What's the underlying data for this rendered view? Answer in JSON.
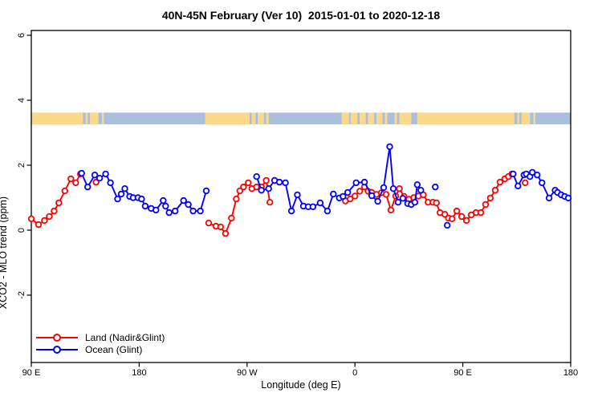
{
  "chart_data": {
    "type": "line",
    "title": "40N-45N February (Ver 10)  2015-01-01 to 2020-12-18",
    "xlabel": "Longitude (deg E)",
    "ylabel": "XCO2 - MLO trend (ppm)",
    "xlim": [
      90,
      540
    ],
    "ylim": [
      -4.07,
      6.15
    ],
    "grid": false,
    "x_ticks": [
      {
        "value": 90,
        "label": "90 E"
      },
      {
        "value": 180,
        "label": "180"
      },
      {
        "value": 270,
        "label": "90 W"
      },
      {
        "value": 360,
        "label": "0"
      },
      {
        "value": 450,
        "label": "90 E"
      },
      {
        "value": 540,
        "label": "180"
      }
    ],
    "y_ticks": [
      {
        "value": -2,
        "label": "-2"
      },
      {
        "value": 0,
        "label": "0"
      },
      {
        "value": 2,
        "label": "2"
      },
      {
        "value": 4,
        "label": "4"
      },
      {
        "value": 6,
        "label": "6"
      }
    ],
    "colors": {
      "land_series": "#ff0000",
      "ocean_series": "#0000ff",
      "map_land": "#fbd98b",
      "map_ocean": "#a9bfdb",
      "axis": "#000000",
      "background": "#ffffff"
    },
    "map_band": {
      "description": "land/ocean strip along longitude",
      "y_range": [
        3.26,
        3.62
      ],
      "segments": [
        {
          "from": 90,
          "to": 133,
          "type": "land"
        },
        {
          "from": 133,
          "to": 135.5,
          "type": "ocean"
        },
        {
          "from": 135.5,
          "to": 137,
          "type": "land"
        },
        {
          "from": 137,
          "to": 139,
          "type": "ocean"
        },
        {
          "from": 139,
          "to": 146,
          "type": "land"
        },
        {
          "from": 146,
          "to": 149,
          "type": "ocean"
        },
        {
          "from": 149,
          "to": 150.5,
          "type": "land"
        },
        {
          "from": 150.5,
          "to": 235,
          "type": "ocean"
        },
        {
          "from": 235,
          "to": 272,
          "type": "land"
        },
        {
          "from": 272,
          "to": 274,
          "type": "ocean"
        },
        {
          "from": 274,
          "to": 277,
          "type": "land"
        },
        {
          "from": 277,
          "to": 279,
          "type": "ocean"
        },
        {
          "from": 279,
          "to": 284,
          "type": "land"
        },
        {
          "from": 284,
          "to": 286,
          "type": "ocean"
        },
        {
          "from": 286,
          "to": 288,
          "type": "land"
        },
        {
          "from": 288,
          "to": 349,
          "type": "ocean"
        },
        {
          "from": 349,
          "to": 355,
          "type": "land"
        },
        {
          "from": 355,
          "to": 356.5,
          "type": "ocean"
        },
        {
          "from": 356.5,
          "to": 362,
          "type": "land"
        },
        {
          "from": 362,
          "to": 364,
          "type": "ocean"
        },
        {
          "from": 364,
          "to": 369,
          "type": "land"
        },
        {
          "from": 369,
          "to": 371,
          "type": "ocean"
        },
        {
          "from": 371,
          "to": 376,
          "type": "land"
        },
        {
          "from": 376,
          "to": 378,
          "type": "ocean"
        },
        {
          "from": 378,
          "to": 383,
          "type": "land"
        },
        {
          "from": 383,
          "to": 385,
          "type": "ocean"
        },
        {
          "from": 385,
          "to": 387,
          "type": "land"
        },
        {
          "from": 387,
          "to": 393,
          "type": "ocean"
        },
        {
          "from": 393,
          "to": 395,
          "type": "land"
        },
        {
          "from": 395,
          "to": 397,
          "type": "ocean"
        },
        {
          "from": 397,
          "to": 407,
          "type": "land"
        },
        {
          "from": 407,
          "to": 412,
          "type": "ocean"
        },
        {
          "from": 412,
          "to": 493,
          "type": "land"
        },
        {
          "from": 493,
          "to": 495.5,
          "type": "ocean"
        },
        {
          "from": 495.5,
          "to": 497,
          "type": "land"
        },
        {
          "from": 497,
          "to": 499,
          "type": "ocean"
        },
        {
          "from": 499,
          "to": 506,
          "type": "land"
        },
        {
          "from": 506,
          "to": 509,
          "type": "ocean"
        },
        {
          "from": 509,
          "to": 510.5,
          "type": "land"
        },
        {
          "from": 510.5,
          "to": 540,
          "type": "ocean"
        }
      ]
    },
    "series": [
      {
        "name": "Land (Nadir&Glint)",
        "color_key": "land_series",
        "marker": "open-circle",
        "segments": [
          [
            [
              90,
              0.35
            ],
            [
              96,
              0.17
            ],
            [
              101,
              0.3
            ],
            [
              105,
              0.42
            ],
            [
              109,
              0.59
            ],
            [
              113,
              0.84
            ],
            [
              118,
              1.21
            ],
            [
              123,
              1.58
            ],
            [
              127,
              1.46
            ],
            [
              131,
              1.73
            ]
          ],
          [
            [
              144,
              1.48
            ]
          ],
          [
            [
              238,
              0.22
            ],
            [
              244,
              0.12
            ],
            [
              248,
              0.1
            ],
            [
              252,
              -0.1
            ],
            [
              257,
              0.37
            ],
            [
              261,
              0.96
            ],
            [
              264,
              1.21
            ],
            [
              267,
              1.33
            ],
            [
              271,
              1.46
            ],
            [
              274,
              1.28
            ],
            [
              278,
              1.33
            ],
            [
              282,
              1.33
            ],
            [
              286,
              1.53
            ],
            [
              289,
              0.86
            ]
          ],
          [
            [
              352,
              0.9
            ],
            [
              356,
              0.96
            ],
            [
              360,
              1.05
            ],
            [
              364,
              1.2
            ],
            [
              368,
              1.33
            ],
            [
              371,
              1.2
            ],
            [
              374,
              1.16
            ],
            [
              378,
              1.1
            ],
            [
              382,
              1.15
            ],
            [
              386,
              1.1
            ],
            [
              390,
              0.62
            ],
            [
              394,
              1.05
            ],
            [
              397,
              1.28
            ],
            [
              401,
              1.04
            ],
            [
              405,
              0.95
            ],
            [
              409,
              1.0
            ],
            [
              413,
              1.05
            ],
            [
              417,
              1.09
            ],
            [
              421,
              0.86
            ],
            [
              425,
              0.86
            ],
            [
              428,
              0.84
            ],
            [
              431,
              0.54
            ],
            [
              435,
              0.49
            ],
            [
              438,
              0.37
            ],
            [
              441,
              0.35
            ],
            [
              445,
              0.59
            ],
            [
              449,
              0.42
            ],
            [
              453,
              0.3
            ],
            [
              457,
              0.47
            ],
            [
              461,
              0.54
            ],
            [
              465,
              0.54
            ],
            [
              469,
              0.79
            ],
            [
              473,
              0.99
            ],
            [
              477,
              1.23
            ],
            [
              481,
              1.48
            ],
            [
              485,
              1.58
            ],
            [
              488,
              1.65
            ],
            [
              491,
              1.73
            ]
          ],
          [
            [
              502,
              1.46
            ]
          ]
        ]
      },
      {
        "name": "Ocean (Glint)",
        "color_key": "ocean_series",
        "marker": "open-circle",
        "segments": [
          [
            [
              132,
              1.75
            ],
            [
              137,
              1.33
            ],
            [
              143,
              1.7
            ],
            [
              147,
              1.6
            ],
            [
              152,
              1.73
            ],
            [
              156,
              1.46
            ],
            [
              162,
              0.96
            ],
            [
              165,
              1.11
            ],
            [
              168,
              1.28
            ],
            [
              172,
              1.04
            ],
            [
              175,
              1.0
            ],
            [
              179,
              1.0
            ],
            [
              182,
              0.96
            ],
            [
              185,
              0.74
            ],
            [
              190,
              0.67
            ],
            [
              194,
              0.62
            ],
            [
              200,
              0.91
            ],
            [
              202,
              0.74
            ],
            [
              205,
              0.54
            ],
            [
              210,
              0.59
            ],
            [
              217,
              0.91
            ],
            [
              221,
              0.79
            ],
            [
              225,
              0.59
            ],
            [
              231,
              0.59
            ],
            [
              236,
              1.21
            ]
          ],
          [
            [
              278,
              1.65
            ],
            [
              282,
              1.23
            ],
            [
              288,
              1.28
            ],
            [
              293,
              1.53
            ],
            [
              297,
              1.48
            ],
            [
              302,
              1.46
            ],
            [
              307,
              0.59
            ],
            [
              312,
              1.09
            ],
            [
              317,
              0.74
            ],
            [
              321,
              0.72
            ],
            [
              325,
              0.72
            ],
            [
              331,
              0.84
            ],
            [
              337,
              0.59
            ],
            [
              342,
              1.11
            ],
            [
              347,
              0.99
            ],
            [
              350,
              1.04
            ],
            [
              354,
              1.16
            ],
            [
              361,
              1.46
            ],
            [
              368,
              1.48
            ],
            [
              374,
              1.06
            ],
            [
              379,
              0.89
            ],
            [
              384,
              1.31
            ],
            [
              389,
              2.57
            ],
            [
              392,
              1.28
            ],
            [
              396,
              0.86
            ],
            [
              400,
              0.98
            ],
            [
              404,
              0.82
            ],
            [
              407,
              0.79
            ],
            [
              410,
              0.86
            ],
            [
              412,
              1.4
            ],
            [
              415,
              1.23
            ]
          ],
          [
            [
              427,
              1.33
            ]
          ],
          [
            [
              437,
              0.15
            ]
          ],
          [
            [
              492,
              1.73
            ],
            [
              496,
              1.36
            ],
            [
              501,
              1.7
            ],
            [
              503,
              1.73
            ],
            [
              506,
              1.65
            ],
            [
              508,
              1.78
            ],
            [
              512,
              1.7
            ],
            [
              516,
              1.46
            ],
            [
              522,
              0.99
            ],
            [
              527,
              1.23
            ],
            [
              529,
              1.16
            ],
            [
              532,
              1.09
            ],
            [
              535,
              1.04
            ],
            [
              538,
              0.99
            ]
          ]
        ]
      }
    ],
    "legend": {
      "position": "bottom-left",
      "items": [
        {
          "label": "Land (Nadir&Glint)",
          "series_index": 0
        },
        {
          "label": "Ocean (Glint)",
          "series_index": 1
        }
      ]
    }
  }
}
